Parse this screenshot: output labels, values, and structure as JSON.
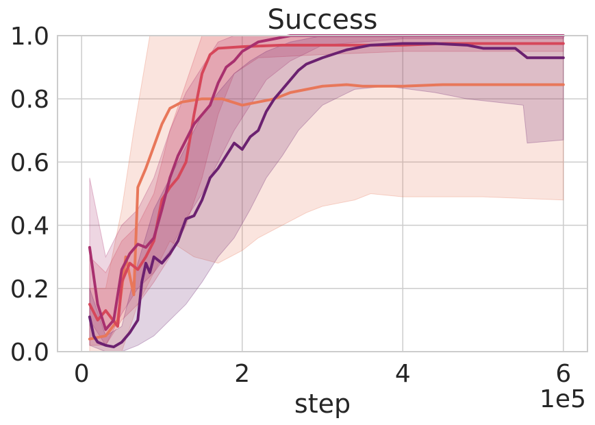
{
  "chart_data": {
    "type": "line",
    "title": "Success",
    "xlabel": "step",
    "ylabel": "",
    "x_offset_label": "1e5",
    "xlim": [
      -0.3,
      6.3
    ],
    "ylim": [
      0.0,
      1.0
    ],
    "xticks": [
      0,
      2,
      4,
      6
    ],
    "xtick_labels": [
      "0",
      "2",
      "4",
      "6"
    ],
    "yticks": [
      0.0,
      0.2,
      0.4,
      0.6,
      0.8,
      1.0
    ],
    "ytick_labels": [
      "0.0",
      "0.2",
      "0.4",
      "0.6",
      "0.8",
      "1.0"
    ],
    "grid": true,
    "legend": "none",
    "series": [
      {
        "color": "#e8775a",
        "points": [
          [
            0.1,
            0.04
          ],
          [
            0.3,
            0.05
          ],
          [
            0.45,
            0.1
          ],
          [
            0.55,
            0.3
          ],
          [
            0.65,
            0.18
          ],
          [
            0.7,
            0.52
          ],
          [
            0.8,
            0.58
          ],
          [
            0.9,
            0.65
          ],
          [
            1.0,
            0.72
          ],
          [
            1.1,
            0.77
          ],
          [
            1.25,
            0.79
          ],
          [
            1.5,
            0.8
          ],
          [
            1.75,
            0.8
          ],
          [
            2.0,
            0.78
          ],
          [
            2.2,
            0.79
          ],
          [
            2.4,
            0.8
          ],
          [
            2.6,
            0.82
          ],
          [
            2.8,
            0.83
          ],
          [
            3.0,
            0.84
          ],
          [
            3.3,
            0.845
          ],
          [
            3.5,
            0.84
          ],
          [
            4.0,
            0.84
          ],
          [
            4.5,
            0.845
          ],
          [
            5.0,
            0.845
          ],
          [
            5.5,
            0.845
          ],
          [
            6.0,
            0.845
          ]
        ],
        "band_upper": [
          [
            0.1,
            0.2
          ],
          [
            0.3,
            0.2
          ],
          [
            0.5,
            0.45
          ],
          [
            0.65,
            0.7
          ],
          [
            0.75,
            0.85
          ],
          [
            0.85,
            1.0
          ],
          [
            6.0,
            1.0
          ]
        ],
        "band_lower": [
          [
            0.1,
            0.0
          ],
          [
            0.3,
            0.0
          ],
          [
            0.5,
            0.0
          ],
          [
            0.7,
            0.15
          ],
          [
            0.9,
            0.25
          ],
          [
            1.1,
            0.35
          ],
          [
            1.4,
            0.3
          ],
          [
            1.7,
            0.28
          ],
          [
            2.0,
            0.32
          ],
          [
            2.2,
            0.36
          ],
          [
            2.5,
            0.4
          ],
          [
            2.8,
            0.44
          ],
          [
            3.0,
            0.46
          ],
          [
            3.4,
            0.48
          ],
          [
            3.6,
            0.5
          ],
          [
            4.0,
            0.49
          ],
          [
            4.5,
            0.49
          ],
          [
            5.0,
            0.49
          ],
          [
            6.0,
            0.48
          ]
        ]
      },
      {
        "color": "#d6475a",
        "points": [
          [
            0.1,
            0.15
          ],
          [
            0.2,
            0.1
          ],
          [
            0.3,
            0.13
          ],
          [
            0.45,
            0.08
          ],
          [
            0.5,
            0.22
          ],
          [
            0.6,
            0.28
          ],
          [
            0.7,
            0.26
          ],
          [
            0.8,
            0.3
          ],
          [
            0.9,
            0.35
          ],
          [
            1.0,
            0.48
          ],
          [
            1.1,
            0.52
          ],
          [
            1.2,
            0.55
          ],
          [
            1.3,
            0.6
          ],
          [
            1.4,
            0.75
          ],
          [
            1.5,
            0.88
          ],
          [
            1.6,
            0.94
          ],
          [
            1.7,
            0.96
          ],
          [
            2.0,
            0.965
          ],
          [
            2.5,
            0.97
          ],
          [
            3.0,
            0.97
          ],
          [
            3.5,
            0.97
          ],
          [
            4.0,
            0.97
          ],
          [
            4.5,
            0.975
          ],
          [
            5.0,
            0.975
          ],
          [
            5.5,
            0.975
          ],
          [
            6.0,
            0.975
          ]
        ],
        "band_upper": [
          [
            0.1,
            0.3
          ],
          [
            0.3,
            0.25
          ],
          [
            0.5,
            0.35
          ],
          [
            0.7,
            0.4
          ],
          [
            0.9,
            0.5
          ],
          [
            1.1,
            0.7
          ],
          [
            1.3,
            0.85
          ],
          [
            1.5,
            1.0
          ],
          [
            6.0,
            1.0
          ]
        ],
        "band_lower": [
          [
            0.1,
            0.02
          ],
          [
            0.3,
            0.02
          ],
          [
            0.5,
            0.1
          ],
          [
            0.7,
            0.15
          ],
          [
            0.9,
            0.22
          ],
          [
            1.1,
            0.3
          ],
          [
            1.3,
            0.4
          ],
          [
            1.5,
            0.55
          ],
          [
            1.7,
            0.75
          ],
          [
            1.9,
            0.88
          ],
          [
            2.2,
            0.93
          ],
          [
            3.0,
            0.94
          ],
          [
            4.0,
            0.95
          ],
          [
            5.0,
            0.95
          ],
          [
            6.0,
            0.95
          ]
        ]
      },
      {
        "color": "#a8306e",
        "points": [
          [
            0.1,
            0.33
          ],
          [
            0.2,
            0.15
          ],
          [
            0.3,
            0.07
          ],
          [
            0.4,
            0.1
          ],
          [
            0.5,
            0.26
          ],
          [
            0.6,
            0.31
          ],
          [
            0.7,
            0.34
          ],
          [
            0.8,
            0.33
          ],
          [
            0.9,
            0.36
          ],
          [
            1.0,
            0.45
          ],
          [
            1.1,
            0.55
          ],
          [
            1.2,
            0.62
          ],
          [
            1.3,
            0.67
          ],
          [
            1.4,
            0.72
          ],
          [
            1.5,
            0.75
          ],
          [
            1.6,
            0.78
          ],
          [
            1.7,
            0.85
          ],
          [
            1.8,
            0.9
          ],
          [
            1.9,
            0.92
          ],
          [
            2.0,
            0.95
          ],
          [
            2.2,
            0.98
          ],
          [
            2.4,
            0.99
          ],
          [
            2.6,
            1.0
          ],
          [
            3.0,
            1.0
          ],
          [
            4.0,
            1.0
          ],
          [
            5.0,
            1.0
          ],
          [
            6.0,
            1.0
          ]
        ],
        "band_upper": [
          [
            0.1,
            0.55
          ],
          [
            0.3,
            0.3
          ],
          [
            0.5,
            0.4
          ],
          [
            0.7,
            0.45
          ],
          [
            0.9,
            0.55
          ],
          [
            1.1,
            0.7
          ],
          [
            1.3,
            0.82
          ],
          [
            1.5,
            0.9
          ],
          [
            1.7,
            0.98
          ],
          [
            1.9,
            1.0
          ],
          [
            6.0,
            1.0
          ]
        ],
        "band_lower": [
          [
            0.1,
            0.1
          ],
          [
            0.3,
            0.02
          ],
          [
            0.5,
            0.12
          ],
          [
            0.7,
            0.2
          ],
          [
            0.9,
            0.25
          ],
          [
            1.1,
            0.32
          ],
          [
            1.3,
            0.42
          ],
          [
            1.5,
            0.5
          ],
          [
            1.7,
            0.6
          ],
          [
            1.9,
            0.7
          ],
          [
            2.1,
            0.78
          ],
          [
            2.3,
            0.86
          ],
          [
            2.6,
            0.92
          ],
          [
            3.0,
            0.97
          ],
          [
            4.0,
            0.99
          ],
          [
            6.0,
            0.99
          ]
        ]
      },
      {
        "color": "#6b2170",
        "points": [
          [
            0.1,
            0.11
          ],
          [
            0.15,
            0.05
          ],
          [
            0.2,
            0.03
          ],
          [
            0.3,
            0.02
          ],
          [
            0.4,
            0.015
          ],
          [
            0.5,
            0.03
          ],
          [
            0.6,
            0.06
          ],
          [
            0.7,
            0.1
          ],
          [
            0.75,
            0.22
          ],
          [
            0.8,
            0.28
          ],
          [
            0.85,
            0.25
          ],
          [
            0.9,
            0.3
          ],
          [
            1.0,
            0.28
          ],
          [
            1.1,
            0.31
          ],
          [
            1.2,
            0.35
          ],
          [
            1.3,
            0.42
          ],
          [
            1.4,
            0.43
          ],
          [
            1.5,
            0.48
          ],
          [
            1.6,
            0.55
          ],
          [
            1.7,
            0.58
          ],
          [
            1.8,
            0.62
          ],
          [
            1.9,
            0.66
          ],
          [
            2.0,
            0.64
          ],
          [
            2.1,
            0.68
          ],
          [
            2.2,
            0.7
          ],
          [
            2.3,
            0.76
          ],
          [
            2.4,
            0.8
          ],
          [
            2.5,
            0.83
          ],
          [
            2.6,
            0.86
          ],
          [
            2.7,
            0.89
          ],
          [
            2.8,
            0.91
          ],
          [
            3.0,
            0.93
          ],
          [
            3.3,
            0.955
          ],
          [
            3.6,
            0.97
          ],
          [
            4.0,
            0.975
          ],
          [
            4.4,
            0.975
          ],
          [
            4.8,
            0.97
          ],
          [
            5.0,
            0.96
          ],
          [
            5.4,
            0.96
          ],
          [
            5.55,
            0.93
          ],
          [
            6.0,
            0.93
          ]
        ],
        "band_upper": [
          [
            0.1,
            0.2
          ],
          [
            0.3,
            0.05
          ],
          [
            0.5,
            0.08
          ],
          [
            0.7,
            0.28
          ],
          [
            0.9,
            0.45
          ],
          [
            1.1,
            0.55
          ],
          [
            1.3,
            0.65
          ],
          [
            1.5,
            0.75
          ],
          [
            1.7,
            0.82
          ],
          [
            1.9,
            0.88
          ],
          [
            2.1,
            0.92
          ],
          [
            2.3,
            0.95
          ],
          [
            2.6,
            0.98
          ],
          [
            3.0,
            1.0
          ],
          [
            6.0,
            1.0
          ]
        ],
        "band_lower": [
          [
            0.1,
            0.02
          ],
          [
            0.3,
            0.0
          ],
          [
            0.5,
            0.0
          ],
          [
            0.7,
            0.02
          ],
          [
            0.9,
            0.05
          ],
          [
            1.1,
            0.1
          ],
          [
            1.3,
            0.15
          ],
          [
            1.5,
            0.22
          ],
          [
            1.7,
            0.3
          ],
          [
            1.9,
            0.36
          ],
          [
            2.1,
            0.45
          ],
          [
            2.3,
            0.55
          ],
          [
            2.5,
            0.62
          ],
          [
            2.7,
            0.7
          ],
          [
            3.0,
            0.78
          ],
          [
            3.4,
            0.83
          ],
          [
            3.8,
            0.84
          ],
          [
            4.4,
            0.82
          ],
          [
            4.8,
            0.8
          ],
          [
            5.5,
            0.78
          ],
          [
            5.55,
            0.66
          ],
          [
            6.0,
            0.67
          ]
        ]
      }
    ]
  }
}
